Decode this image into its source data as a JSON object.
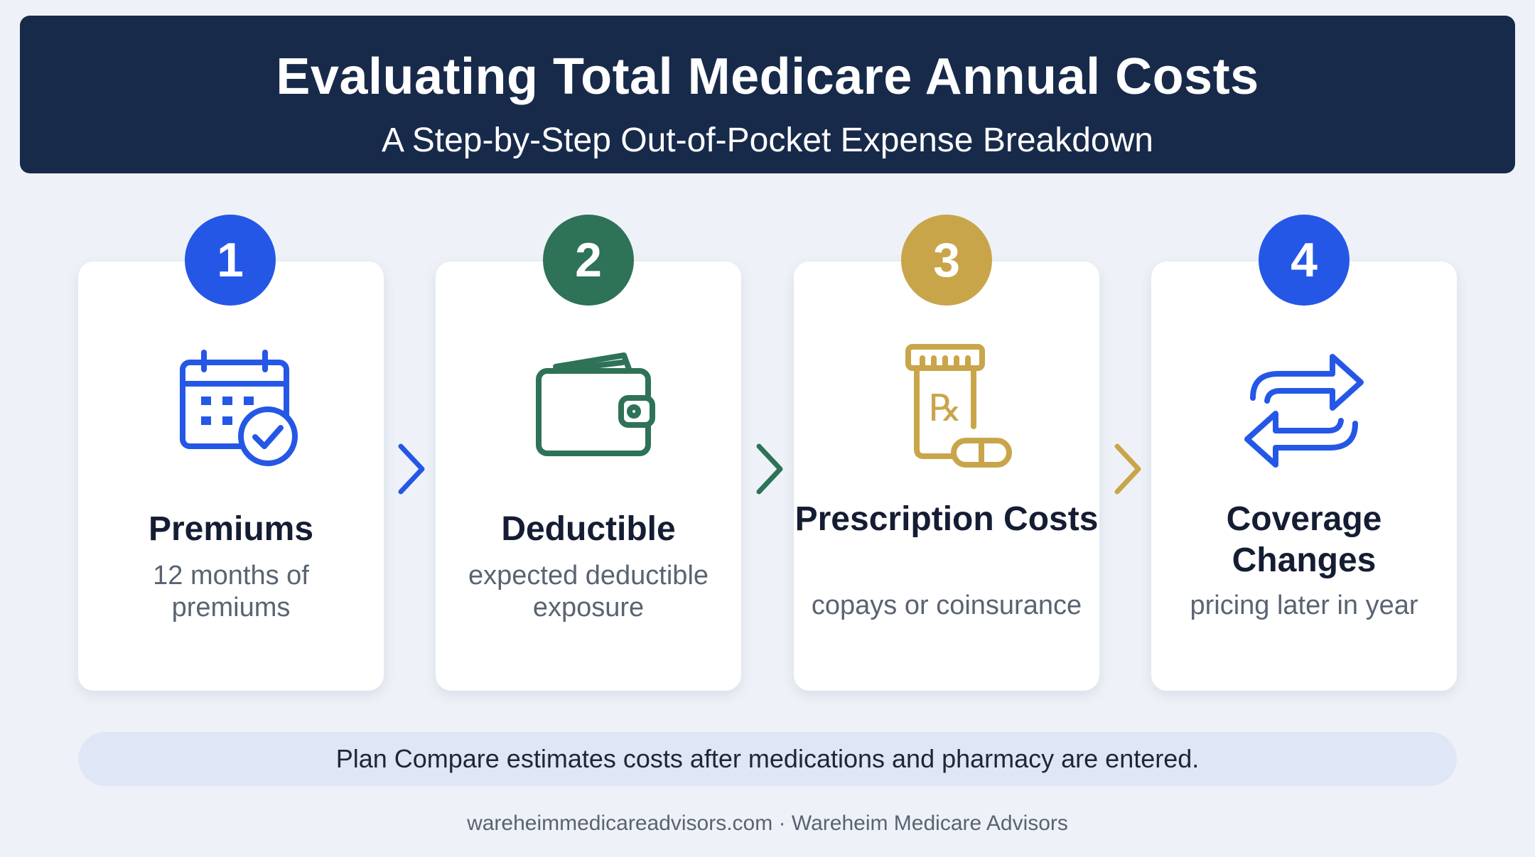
{
  "header": {
    "title": "Evaluating Total Medicare Annual Costs",
    "subtitle": "A Step-by-Step Out-of-Pocket Expense Breakdown"
  },
  "steps": [
    {
      "number": "1",
      "title": "Premiums",
      "description": "12 months of premiums",
      "icon": "calendar-check-icon",
      "color": "#2557e6"
    },
    {
      "number": "2",
      "title": "Deductible",
      "description": "expected deductible exposure",
      "icon": "wallet-icon",
      "color": "#2e7257"
    },
    {
      "number": "3",
      "title": "Prescription Costs",
      "description": "copays or coinsurance",
      "icon": "prescription-bottle-icon",
      "color": "#c9a54a"
    },
    {
      "number": "4",
      "title": "Coverage Changes",
      "description": "pricing later in year",
      "icon": "exchange-arrows-icon",
      "color": "#2557e6"
    }
  ],
  "note": "Plan Compare estimates costs after medications and pharmacy are entered.",
  "footer": "wareheimmedicareadvisors.com · Wareheim Medicare Advisors"
}
